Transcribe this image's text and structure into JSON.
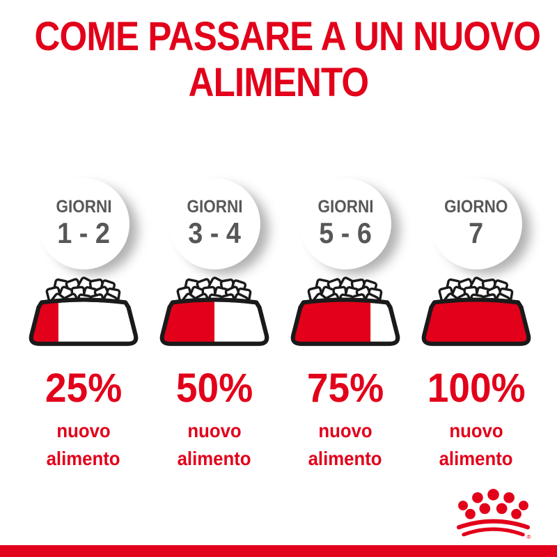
{
  "title": {
    "line1": "COME PASSARE A UN NUOVO",
    "line2": "ALIMENTO"
  },
  "columns": [
    {
      "day_label": "GIORNI",
      "day_range": "1 - 2",
      "percent": "25%",
      "fraction": 0.25,
      "caption_line1": "nuovo",
      "caption_line2": "alimento"
    },
    {
      "day_label": "GIORNI",
      "day_range": "3 - 4",
      "percent": "50%",
      "fraction": 0.5,
      "caption_line1": "nuovo",
      "caption_line2": "alimento"
    },
    {
      "day_label": "GIORNI",
      "day_range": "5 - 6",
      "percent": "75%",
      "fraction": 0.75,
      "caption_line1": "nuovo",
      "caption_line2": "alimento"
    },
    {
      "day_label": "GIORNO",
      "day_range": "7",
      "percent": "100%",
      "fraction": 1,
      "caption_line1": "nuovo",
      "caption_line2": "alimento"
    }
  ],
  "footer": {
    "logo": "royal-canin-crown",
    "registered_mark": "®"
  },
  "colors": {
    "accent_red": "#E2001A",
    "day_text_gray": "#575757",
    "outline_black": "#1A1A1A",
    "background": "#FFFFFF"
  }
}
